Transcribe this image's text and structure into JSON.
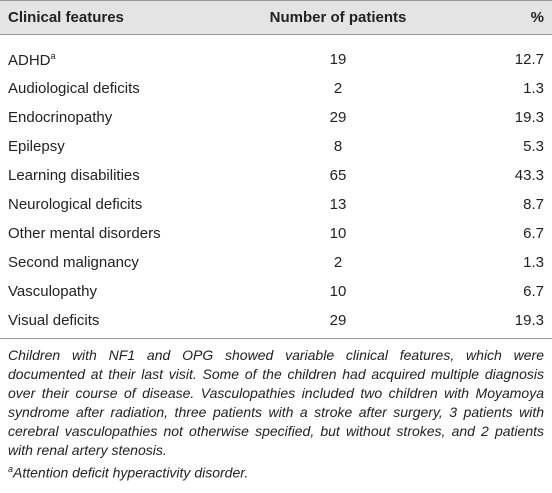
{
  "table": {
    "header": [
      "Clinical features",
      "Number of patients",
      "%"
    ],
    "rows": [
      {
        "feature": "ADHD",
        "feature_sup": "a",
        "count": 19,
        "percent": 12.7
      },
      {
        "feature": "Audiological deficits",
        "count": 2,
        "percent": 1.3
      },
      {
        "feature": "Endocrinopathy",
        "count": 29,
        "percent": 19.3
      },
      {
        "feature": "Epilepsy",
        "count": 8,
        "percent": 5.3
      },
      {
        "feature": "Learning disabilities",
        "count": 65,
        "percent": 43.3
      },
      {
        "feature": "Neurological deficits",
        "count": 13,
        "percent": 8.7
      },
      {
        "feature": "Other mental disorders",
        "count": 10,
        "percent": 6.7
      },
      {
        "feature": "Second malignancy",
        "count": 2,
        "percent": 1.3
      },
      {
        "feature": "Vasculopathy",
        "count": 10,
        "percent": 6.7
      },
      {
        "feature": "Visual deficits",
        "count": 29,
        "percent": 19.3
      }
    ]
  },
  "footnote": {
    "text": "Children with NF1 and OPG showed variable clinical features, which were documented at their last visit. Some of the children had acquired multiple diagnosis over their course of disease. Vasculopathies included two children with Moyamoya syndrome after radiation, three patients with a stroke after surgery, 3 patients with cerebral vasculopathies not otherwise specified, but without strokes, and 2 patients with renal artery stenosis.",
    "marker": "a",
    "abbreviation": "Attention deficit hyperactivity disorder."
  }
}
